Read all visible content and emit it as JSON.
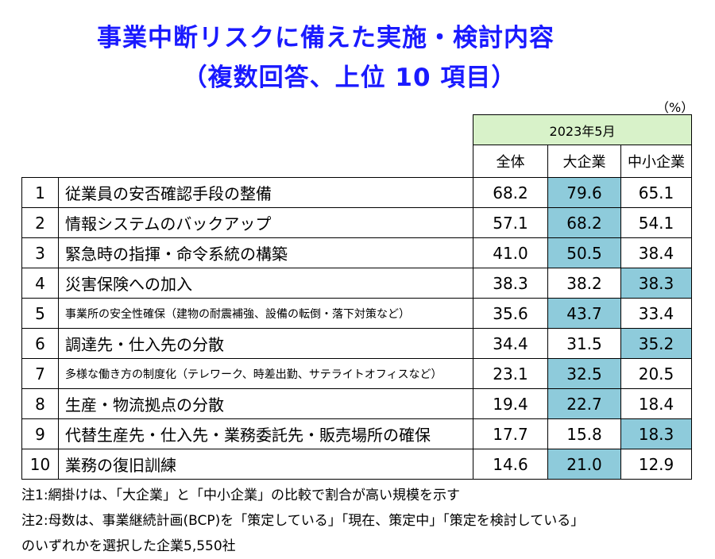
{
  "title": {
    "line1": "事業中断リスクに備えた実施・検討内容",
    "line2": "（複数回答、上位 10 項目）"
  },
  "unit": "（%）",
  "period": "2023年5月",
  "columns": [
    "全体",
    "大企業",
    "中小企業"
  ],
  "rows": [
    {
      "no": "1",
      "item": "従業員の安否確認手段の整備",
      "all": "68.2",
      "large": "79.6",
      "sme": "65.1",
      "highlight": "large"
    },
    {
      "no": "2",
      "item": "情報システムのバックアップ",
      "all": "57.1",
      "large": "68.2",
      "sme": "54.1",
      "highlight": "large"
    },
    {
      "no": "3",
      "item": "緊急時の指揮・命令系統の構築",
      "all": "41.0",
      "large": "50.5",
      "sme": "38.4",
      "highlight": "large"
    },
    {
      "no": "4",
      "item": "災害保険への加入",
      "all": "38.3",
      "large": "38.2",
      "sme": "38.3",
      "highlight": "sme"
    },
    {
      "no": "5",
      "item": "事業所の安全性確保（建物の耐震補強、設備の転倒・落下対策など）",
      "all": "35.6",
      "large": "43.7",
      "sme": "33.4",
      "highlight": "large",
      "small": true
    },
    {
      "no": "6",
      "item": "調達先・仕入先の分散",
      "all": "34.4",
      "large": "31.5",
      "sme": "35.2",
      "highlight": "sme"
    },
    {
      "no": "7",
      "item": "多様な働き方の制度化（テレワーク、時差出勤、サテライトオフィスなど）",
      "all": "23.1",
      "large": "32.5",
      "sme": "20.5",
      "highlight": "large",
      "small": true
    },
    {
      "no": "8",
      "item": "生産・物流拠点の分散",
      "all": "19.4",
      "large": "22.7",
      "sme": "18.4",
      "highlight": "large"
    },
    {
      "no": "9",
      "item": "代替生産先・仕入先・業務委託先・販売場所の確保",
      "all": "17.7",
      "large": "15.8",
      "sme": "18.3",
      "highlight": "sme"
    },
    {
      "no": "10",
      "item": "業務の復旧訓練",
      "all": "14.6",
      "large": "21.0",
      "sme": "12.9",
      "highlight": "large"
    }
  ],
  "notes": [
    "注1:網掛けは、「大企業」と「中小企業」の比較で割合が高い規模を示す",
    "注2:母数は、事業継続計画(BCP)を「策定している」「現在、策定中」「策定を検討している」",
    "のいずれかを選択した企業5,550社"
  ],
  "colors": {
    "title": "#1a1aff",
    "highlight": "#8ecbdb",
    "period_bg": "#d8f2c9"
  }
}
